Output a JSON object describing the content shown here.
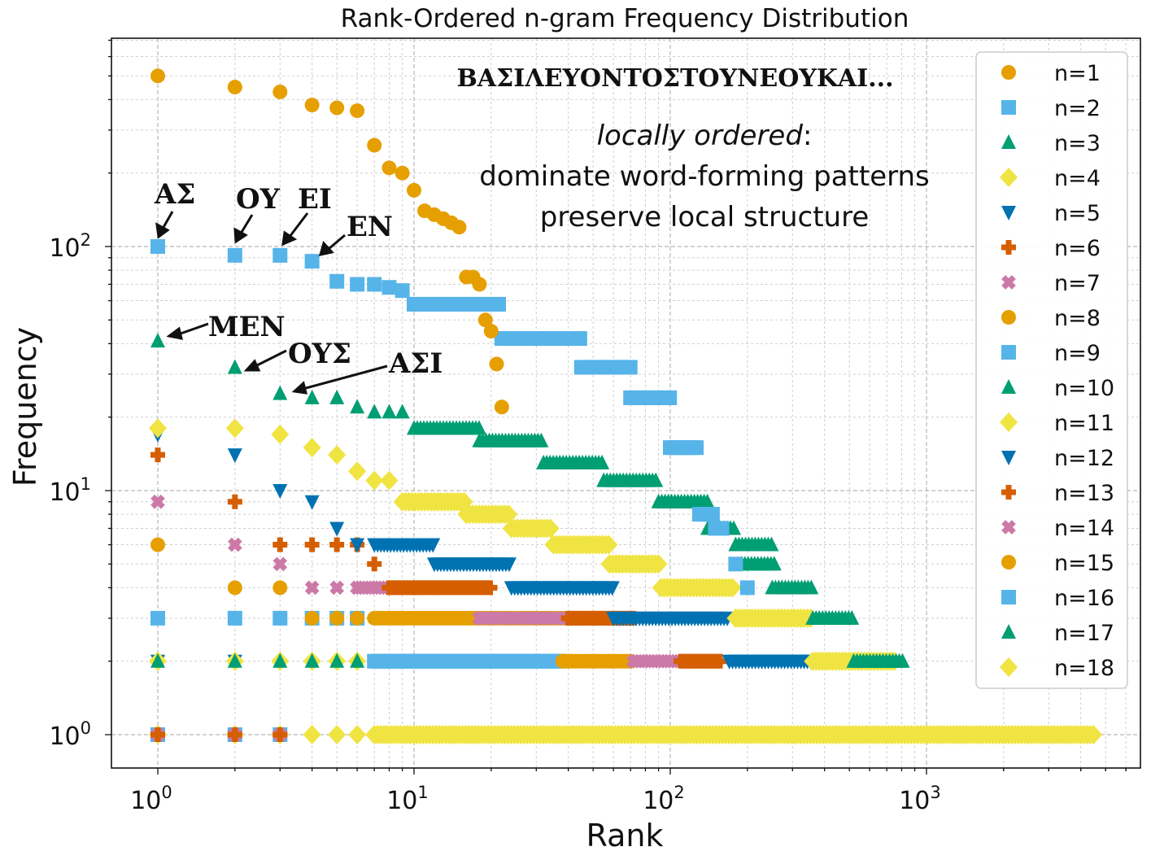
{
  "chart_data": {
    "type": "scatter",
    "title": "Rank-Ordered n-gram Frequency Distribution",
    "xlabel": "Rank",
    "ylabel": "Frequency",
    "xscale": "log",
    "yscale": "log",
    "xlim": [
      0.72,
      6500
    ],
    "ylim": [
      0.72,
      600
    ],
    "grid": true,
    "legend_position": "top-right",
    "x_ticks": [
      {
        "value": 1,
        "base": "10",
        "exp": "0"
      },
      {
        "value": 10,
        "base": "10",
        "exp": "1"
      },
      {
        "value": 100,
        "base": "10",
        "exp": "2"
      },
      {
        "value": 1000,
        "base": "10",
        "exp": "3"
      }
    ],
    "y_ticks": [
      {
        "value": 1,
        "base": "10",
        "exp": "0"
      },
      {
        "value": 10,
        "base": "10",
        "exp": "1"
      },
      {
        "value": 100,
        "base": "10",
        "exp": "2"
      }
    ],
    "colors": {
      "orange": "#E69F00",
      "blue": "#56B4E9",
      "green": "#009E73",
      "yellow": "#F0E442",
      "darkblue": "#0072B2",
      "vermillion": "#D55E00",
      "pink": "#CC79A7"
    },
    "series": [
      {
        "name": "n=1",
        "marker": "circle",
        "color": "#E69F00",
        "values": [
          500,
          450,
          430,
          380,
          370,
          360,
          260,
          210,
          200,
          170,
          140,
          135,
          130,
          125,
          120,
          75,
          75,
          70,
          50,
          45,
          33,
          22
        ]
      },
      {
        "name": "n=2",
        "marker": "square",
        "color": "#56B4E9",
        "values": [
          100,
          92,
          92,
          87,
          72,
          70,
          70,
          68,
          66
        ],
        "steps": [
          [
            10,
            22,
            58
          ],
          [
            22,
            45,
            42
          ],
          [
            45,
            70,
            32
          ],
          [
            70,
            100,
            24
          ],
          [
            100,
            130,
            15
          ],
          [
            130,
            150,
            8
          ],
          [
            150,
            160,
            7
          ]
        ],
        "sparse": [
          [
            180,
            5
          ],
          [
            200,
            4
          ]
        ]
      },
      {
        "name": "n=3",
        "marker": "triangle-up",
        "color": "#009E73",
        "values": [
          41,
          32,
          25,
          24,
          24,
          22,
          21,
          21,
          21
        ],
        "steps": [
          [
            10,
            18,
            18
          ],
          [
            18,
            32,
            16
          ],
          [
            32,
            55,
            13
          ],
          [
            55,
            90,
            11
          ],
          [
            90,
            140,
            9
          ],
          [
            140,
            180,
            7
          ],
          [
            180,
            250,
            6
          ],
          [
            190,
            260,
            5
          ],
          [
            250,
            360,
            4
          ],
          [
            360,
            520,
            3
          ],
          [
            520,
            830,
            2
          ]
        ]
      },
      {
        "name": "n=4",
        "marker": "diamond",
        "color": "#F0E442",
        "values": [
          18,
          18,
          17,
          15,
          14,
          12,
          11,
          11
        ],
        "steps": [
          [
            9,
            16,
            9
          ],
          [
            16,
            24,
            8
          ],
          [
            24,
            35,
            7
          ],
          [
            35,
            58,
            6
          ],
          [
            58,
            92,
            5
          ],
          [
            92,
            180,
            4
          ],
          [
            180,
            360,
            3
          ],
          [
            360,
            760,
            2
          ],
          [
            7,
            4500,
            1
          ]
        ]
      },
      {
        "name": "n=5",
        "marker": "triangle-down",
        "color": "#0072B2",
        "values": [
          17,
          14,
          10,
          9,
          7,
          6
        ],
        "steps": [
          [
            7,
            12,
            6
          ],
          [
            12,
            24,
            5
          ],
          [
            24,
            60,
            4
          ],
          [
            60,
            170,
            3
          ],
          [
            170,
            380,
            2
          ]
        ]
      },
      {
        "name": "n=6",
        "marker": "plus",
        "color": "#D55E00",
        "values": [
          14,
          9,
          6,
          6,
          6,
          6,
          5
        ],
        "steps": [
          [
            8,
            20,
            4
          ],
          [
            40,
            72,
            3
          ],
          [
            110,
            160,
            2
          ]
        ]
      },
      {
        "name": "n=7",
        "marker": "x",
        "color": "#CC79A7",
        "values": [
          9,
          6,
          5,
          4,
          4,
          4
        ],
        "steps": [
          [
            6,
            10,
            4
          ],
          [
            18,
            45,
            3
          ],
          [
            72,
            115,
            2
          ]
        ]
      },
      {
        "name": "n=8",
        "marker": "circle",
        "color": "#E69F00",
        "values": [
          6,
          4,
          4,
          3,
          3,
          3
        ],
        "steps": [
          [
            7,
            40,
            3
          ],
          [
            38,
            72,
            2
          ]
        ]
      },
      {
        "name": "n=9",
        "marker": "square",
        "color": "#56B4E9",
        "values": [
          3,
          3,
          3,
          3,
          3,
          3
        ],
        "steps": [
          [
            7,
            38,
            2
          ]
        ]
      },
      {
        "name": "n=10",
        "marker": "triangle-up",
        "color": "#009E73",
        "values": [
          2,
          2,
          2,
          2,
          2,
          2
        ]
      },
      {
        "name": "n=11",
        "marker": "diamond",
        "color": "#F0E442",
        "values": [
          2,
          2,
          2,
          2,
          2,
          2
        ]
      },
      {
        "name": "n=12",
        "marker": "triangle-down",
        "color": "#0072B2",
        "values": [
          2,
          2
        ]
      },
      {
        "name": "n=13",
        "marker": "plus",
        "color": "#D55E00",
        "values": [
          1,
          1,
          1
        ]
      },
      {
        "name": "n=14",
        "marker": "x",
        "color": "#CC79A7",
        "values": [
          1,
          1,
          1
        ]
      },
      {
        "name": "n=15",
        "marker": "circle",
        "color": "#E69F00",
        "values": [
          1,
          1,
          1
        ]
      },
      {
        "name": "n=16",
        "marker": "square",
        "color": "#56B4E9",
        "values": [
          1,
          1,
          1
        ]
      },
      {
        "name": "n=17",
        "marker": "triangle-up",
        "color": "#009E73",
        "values": [
          1,
          1,
          1
        ]
      },
      {
        "name": "n=18",
        "marker": "diamond",
        "color": "#F0E442",
        "values": [
          1,
          1,
          1,
          1,
          1,
          1,
          1
        ]
      }
    ],
    "annotations": {
      "header_text": "ΒΑΣΙΛΕΥΟΝΤΟΣΤΟΥΝΕΟΥΚΑΙ...",
      "italic_phrase": "locally ordered",
      "colon": ":",
      "line2": "dominate word-forming patterns",
      "line3": "preserve local structure",
      "labels": [
        {
          "text": "ΑΣ",
          "x": 1,
          "y": 100
        },
        {
          "text": "ΟΥ",
          "x": 2,
          "y": 92
        },
        {
          "text": "ΕΙ",
          "x": 3,
          "y": 92
        },
        {
          "text": "ΕΝ",
          "x": 4,
          "y": 87
        },
        {
          "text": "ΜΕΝ",
          "x": 1,
          "y": 41
        },
        {
          "text": "ΟΥΣ",
          "x": 2,
          "y": 32
        },
        {
          "text": "ΑΣΙ",
          "x": 3,
          "y": 25
        }
      ]
    }
  }
}
